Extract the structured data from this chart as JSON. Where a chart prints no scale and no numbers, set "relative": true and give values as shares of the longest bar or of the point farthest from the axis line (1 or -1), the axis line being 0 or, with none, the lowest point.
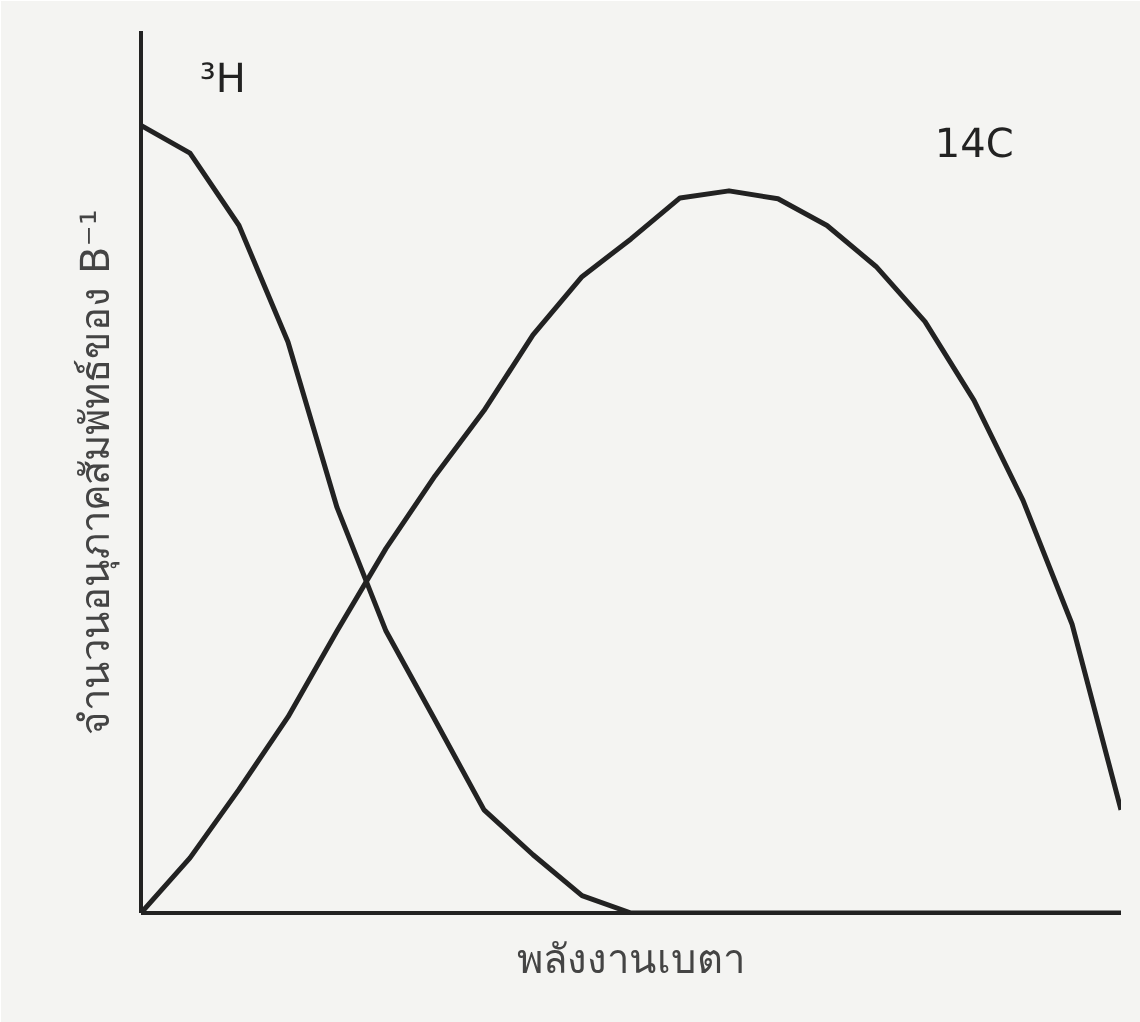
{
  "chart_data": {
    "type": "line",
    "relative": true,
    "xlabel": "พลังงานเบตา",
    "ylabel": "จำนวนอนุภาคสัมพัทธ์ของ B⁻¹",
    "categories": [
      null,
      null,
      null,
      null,
      null,
      null,
      null,
      null,
      null,
      null,
      null,
      null,
      null,
      null,
      null,
      null,
      null,
      null,
      null,
      null,
      null
    ],
    "series": [
      {
        "name": "³H",
        "color": "#222222",
        "values": [
          1.0,
          0.965,
          0.873,
          0.725,
          0.515,
          0.358,
          0.245,
          0.131,
          0.074,
          0.022,
          0,
          0,
          0,
          0,
          0,
          0,
          0,
          0,
          0,
          0,
          0
        ]
      },
      {
        "name": "14C",
        "color": "#222222",
        "values": [
          0,
          0.07,
          0.157,
          0.249,
          0.358,
          0.463,
          0.555,
          0.638,
          0.734,
          0.808,
          0.856,
          0.908,
          0.917,
          0.907,
          0.873,
          0.821,
          0.751,
          0.651,
          0.524,
          0.367,
          0.131
        ]
      }
    ],
    "grid": false,
    "marker": "none",
    "line_style": "solid",
    "tick_labels": false
  }
}
